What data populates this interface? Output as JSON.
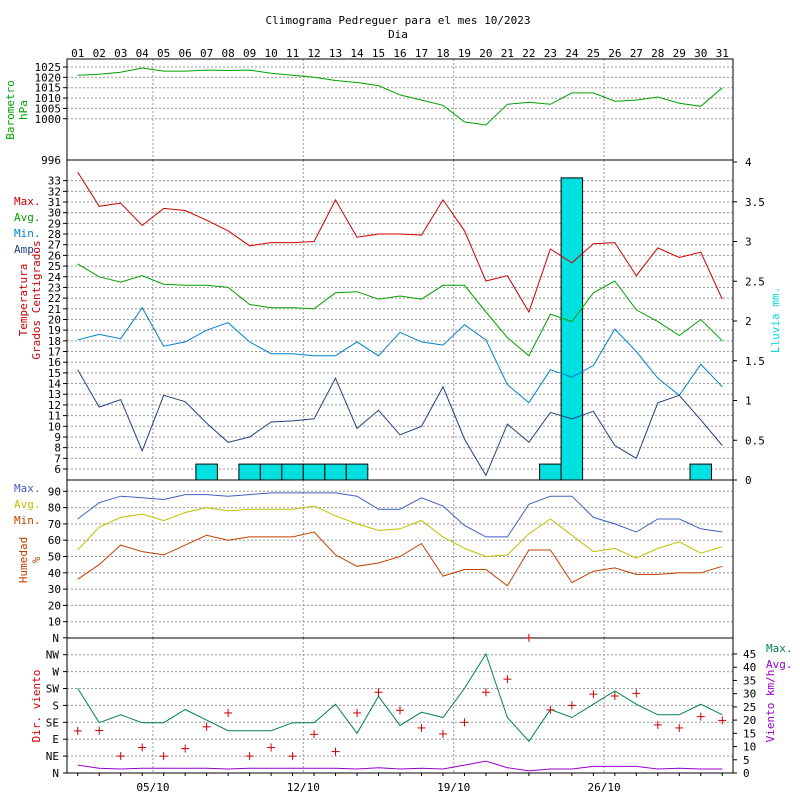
{
  "title": "Climograma Pedreguer para el mes 10/2023",
  "xlabel": "Dia",
  "days": [
    "01",
    "02",
    "03",
    "04",
    "05",
    "06",
    "07",
    "08",
    "09",
    "10",
    "11",
    "12",
    "13",
    "14",
    "15",
    "16",
    "17",
    "18",
    "19",
    "20",
    "21",
    "22",
    "23",
    "24",
    "25",
    "26",
    "27",
    "28",
    "29",
    "30",
    "31"
  ],
  "week_labels": [
    "05/10",
    "12/10",
    "19/10",
    "26/10"
  ],
  "colors": {
    "pressure": "#00a000",
    "tmax": "#cc0000",
    "tavg": "#00a000",
    "tmin": "#0080cc",
    "tamp": "#204080",
    "rain": "#00e0e0",
    "hmax": "#4060c0",
    "havg": "#c0c000",
    "hmin": "#c04000",
    "wind_dir": "#cc0000",
    "wind_max": "#008050",
    "wind_avg": "#9900cc",
    "grid": "#999999",
    "frame": "#000000"
  },
  "chart_data": [
    {
      "type": "line",
      "id": "pressure",
      "ylabel": [
        "Barometro",
        "hPa"
      ],
      "ylim": [
        996,
        1025
      ],
      "yticks": [
        1000,
        1005,
        1010,
        1015,
        1020,
        1025
      ],
      "extra_tick_label": "996",
      "series": [
        {
          "name": "",
          "values": [
            1021,
            1021.5,
            1022.5,
            1024.5,
            1023,
            1023,
            1023.5,
            1023.3,
            1023.5,
            1022,
            1021,
            1020,
            1018.5,
            1017.5,
            1016,
            1011.5,
            1009,
            1006.5,
            998.5,
            997,
            1007,
            1008,
            1007,
            1012.5,
            1012.5,
            1008.5,
            1009,
            1010.5,
            1007.5,
            1006,
            1015
          ]
        }
      ]
    },
    {
      "type": "line+bar",
      "id": "temperature",
      "ylabel": [
        "Temperatura",
        "Grados Centigrados"
      ],
      "y2label": "Lluvia mm.",
      "ylim": [
        5,
        34
      ],
      "y2lim": [
        0,
        4
      ],
      "legend": [
        "Max.",
        "Avg.",
        "Min.",
        "Amp."
      ],
      "series": [
        {
          "name": "Max.",
          "values": [
            33.8,
            30.6,
            30.9,
            28.8,
            30.4,
            30.2,
            29.3,
            28.3,
            26.9,
            27.2,
            27.2,
            27.3,
            31.2,
            27.7,
            28.0,
            28.0,
            27.9,
            31.2,
            28.3,
            23.6,
            24.1,
            20.7,
            26.6,
            25.3,
            27.1,
            27.2,
            24.1,
            26.7,
            25.8,
            26.3,
            21.9
          ]
        },
        {
          "name": "Avg.",
          "values": [
            25.2,
            24.0,
            23.5,
            24.1,
            23.3,
            23.2,
            23.2,
            23.0,
            21.4,
            21.1,
            21.1,
            21.0,
            22.5,
            22.6,
            21.9,
            22.2,
            21.9,
            23.2,
            23.2,
            20.7,
            18.3,
            16.6,
            20.5,
            19.8,
            22.5,
            23.6,
            20.9,
            19.8,
            18.5,
            20.0,
            18.0
          ]
        },
        {
          "name": "Min.",
          "values": [
            18.1,
            18.6,
            18.2,
            21.1,
            17.5,
            17.9,
            19.0,
            19.7,
            17.9,
            16.8,
            16.8,
            16.6,
            16.6,
            17.9,
            16.6,
            18.8,
            17.9,
            17.6,
            19.5,
            18.1,
            13.9,
            12.2,
            15.3,
            14.6,
            15.7,
            19.1,
            17.0,
            14.5,
            12.9,
            15.8,
            13.7
          ]
        },
        {
          "name": "Amp.",
          "values": [
            15.3,
            11.8,
            12.5,
            7.7,
            12.9,
            12.3,
            10.3,
            8.5,
            9.0,
            10.4,
            10.5,
            10.7,
            14.5,
            9.8,
            11.5,
            9.2,
            10.0,
            13.7,
            8.8,
            5.4,
            10.2,
            8.5,
            11.3,
            10.7,
            11.4,
            8.2,
            7.0,
            12.2,
            12.9,
            10.6,
            8.2
          ]
        },
        {
          "name": "Lluvia",
          "bars": true,
          "values": [
            0,
            0,
            0,
            0,
            0,
            0,
            0.2,
            0,
            0.2,
            0.2,
            0.2,
            0.2,
            0.2,
            0.2,
            0,
            0,
            0,
            0,
            0,
            0,
            0,
            0,
            0.2,
            3.8,
            0,
            0,
            0,
            0,
            0,
            0.2,
            0
          ]
        }
      ]
    },
    {
      "type": "line",
      "id": "humidity",
      "ylabel": [
        "Humedad",
        "%"
      ],
      "ylim": [
        0,
        95
      ],
      "legend": [
        "Max.",
        "Avg.",
        "Min."
      ],
      "series": [
        {
          "name": "Max.",
          "values": [
            73,
            83,
            87,
            86,
            85,
            88,
            88,
            87,
            88,
            89,
            89,
            89,
            89,
            87,
            79,
            79,
            86,
            81,
            69,
            62,
            62,
            82,
            87,
            87,
            74,
            70,
            65,
            73,
            73,
            67,
            65
          ]
        },
        {
          "name": "Avg.",
          "values": [
            54,
            68,
            74,
            76,
            72,
            77,
            80,
            78,
            79,
            79,
            79,
            81,
            75,
            70,
            66,
            67,
            72,
            62,
            55,
            50,
            51,
            64,
            73,
            63,
            53,
            55,
            49,
            55,
            59,
            52,
            56
          ]
        },
        {
          "name": "Min.",
          "values": [
            36,
            45,
            57,
            53,
            51,
            57,
            63,
            60,
            62,
            62,
            62,
            65,
            51,
            44,
            46,
            50,
            58,
            38,
            42,
            42,
            32,
            54,
            54,
            34,
            41,
            43,
            39,
            39,
            40,
            40,
            44
          ]
        }
      ]
    },
    {
      "type": "line+scatter",
      "id": "wind",
      "ylabel": "Dir. viento",
      "y2label": "Viento km/h",
      "directions": [
        "N",
        "NE",
        "E",
        "SE",
        "S",
        "SW",
        "W",
        "NW",
        "N"
      ],
      "y2lim": [
        0,
        45
      ],
      "legend": [
        "Max.",
        "Avg."
      ],
      "series": [
        {
          "name": "Max.",
          "values": [
            32,
            19,
            22,
            19,
            19,
            24,
            20,
            16,
            16,
            16,
            19,
            19,
            26,
            15,
            29,
            18,
            23,
            21,
            32,
            45,
            21,
            12,
            24,
            21,
            26,
            31,
            26,
            22,
            22,
            26,
            22
          ]
        },
        {
          "name": "Avg.",
          "values": [
            3.0,
            1.8,
            1.5,
            1.8,
            1.8,
            1.8,
            1.8,
            1.5,
            1.8,
            1.8,
            1.8,
            1.8,
            1.8,
            1.5,
            2.0,
            1.5,
            1.8,
            1.5,
            3.0,
            4.5,
            2.0,
            0.8,
            1.5,
            1.5,
            2.5,
            2.5,
            2.5,
            1.5,
            1.8,
            1.5,
            1.5
          ]
        },
        {
          "name": "Dir.",
          "scatter": true,
          "units": "deg",
          "values": [
            112,
            113,
            45,
            68,
            45,
            65,
            123,
            160,
            45,
            68,
            45,
            103,
            57,
            160,
            215,
            167,
            120,
            104,
            135,
            215,
            250,
            360,
            168,
            180,
            210,
            205,
            212,
            128,
            120,
            150,
            140
          ]
        }
      ]
    }
  ]
}
